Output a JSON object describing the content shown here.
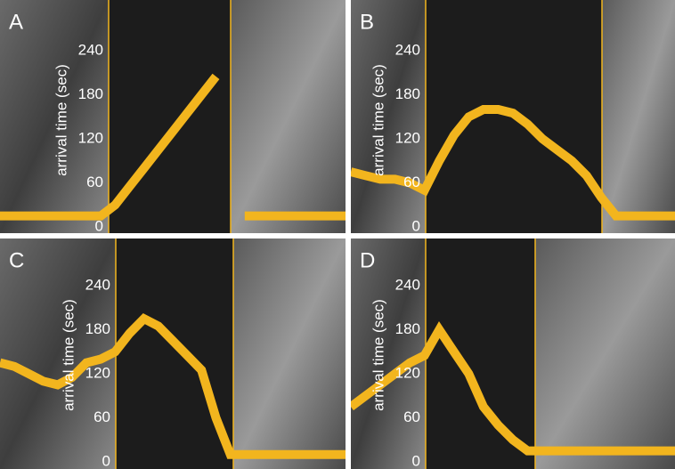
{
  "chart_data": [
    {
      "type": "line",
      "panel_label": "A",
      "y_label": "arrival  time (sec)",
      "ylim": [
        0,
        300
      ],
      "yticks": [
        0,
        60,
        120,
        180,
        240
      ],
      "series": [
        {
          "color": "#f2b51e",
          "values": [
            15,
            15,
            15,
            15,
            15,
            15,
            15,
            15,
            30,
            55,
            80,
            105,
            130,
            155,
            180,
            205,
            null,
            15,
            15,
            15,
            15,
            15,
            15,
            15,
            15
          ]
        }
      ]
    },
    {
      "type": "line",
      "panel_label": "B",
      "y_label": "arrival  time (sec)",
      "ylim": [
        0,
        300
      ],
      "yticks": [
        0,
        60,
        120,
        180,
        240
      ],
      "series": [
        {
          "color": "#f2b51e",
          "values": [
            75,
            70,
            65,
            65,
            60,
            50,
            90,
            125,
            150,
            160,
            160,
            155,
            140,
            120,
            105,
            90,
            70,
            40,
            15,
            15,
            15,
            15,
            15
          ]
        }
      ]
    },
    {
      "type": "line",
      "panel_label": "C",
      "y_label": "arrival  time (sec)",
      "ylim": [
        0,
        300
      ],
      "yticks": [
        0,
        60,
        120,
        180,
        240
      ],
      "series": [
        {
          "color": "#f2b51e",
          "values": [
            135,
            130,
            120,
            110,
            105,
            115,
            135,
            140,
            150,
            175,
            195,
            185,
            165,
            145,
            125,
            60,
            10,
            10,
            10,
            10,
            10,
            10,
            10,
            10,
            10
          ]
        }
      ]
    },
    {
      "type": "line",
      "panel_label": "D",
      "y_label": "arrival  time (sec)",
      "ylim": [
        0,
        300
      ],
      "yticks": [
        0,
        60,
        120,
        180,
        240
      ],
      "series": [
        {
          "color": "#f2b51e",
          "values": [
            75,
            90,
            105,
            120,
            135,
            145,
            180,
            150,
            120,
            75,
            50,
            30,
            15,
            15,
            15,
            15,
            15,
            15,
            15,
            15,
            15,
            15,
            15
          ]
        }
      ]
    }
  ]
}
